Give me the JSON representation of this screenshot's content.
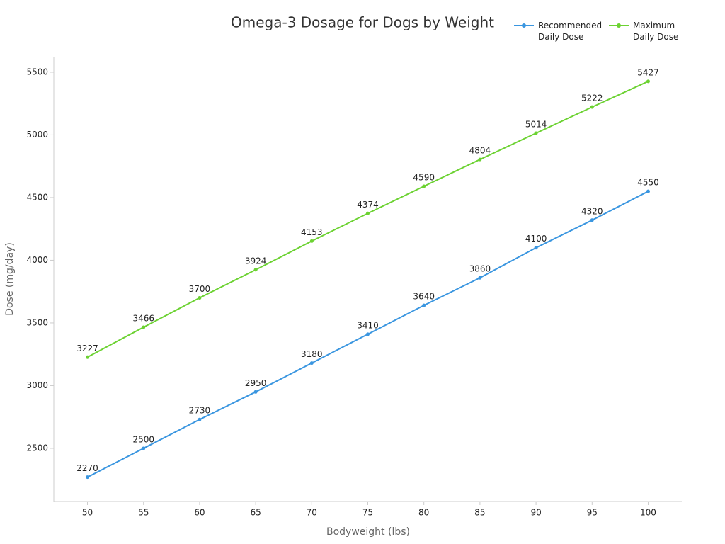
{
  "chart_data": {
    "type": "line",
    "title": "Omega-3 Dosage for Dogs by Weight",
    "x_label": "Bodyweight (lbs)",
    "y_label": "Dose (mg/day)",
    "x": [
      50,
      55,
      60,
      65,
      70,
      75,
      80,
      85,
      90,
      95,
      100
    ],
    "series": [
      {
        "name": "Recommended Daily Dose",
        "color": "#3a96e0",
        "values": [
          2270,
          2500,
          2730,
          2950,
          3180,
          3410,
          3640,
          3860,
          4100,
          4320,
          4550
        ]
      },
      {
        "name": "Maximum Daily Dose",
        "color": "#6cd232",
        "values": [
          3227,
          3466,
          3700,
          3924,
          4153,
          4374,
          4590,
          4804,
          5014,
          5222,
          5427
        ]
      }
    ],
    "xlim": [
      47,
      103
    ],
    "xticks": [
      50,
      55,
      60,
      65,
      70,
      75,
      80,
      85,
      90,
      95,
      100
    ],
    "ylim": [
      2076,
      5624
    ],
    "yticks": [
      2500,
      3000,
      3500,
      4000,
      4500,
      5000,
      5500
    ],
    "grid": false,
    "legend": "top-right"
  }
}
